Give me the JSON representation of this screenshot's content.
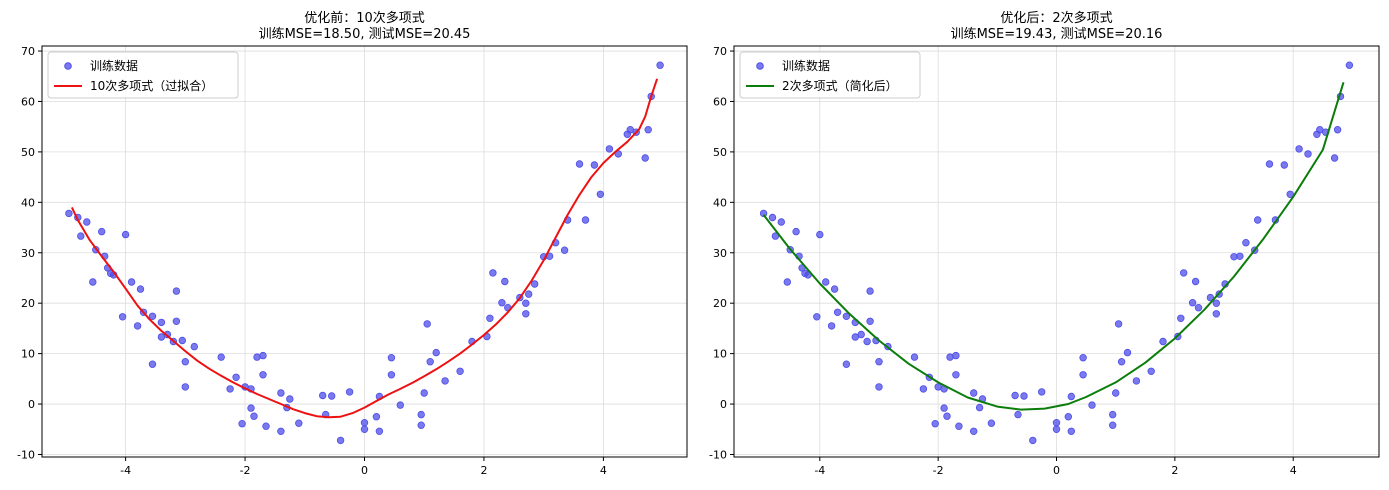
{
  "chart_data": [
    {
      "type": "scatter",
      "title": "优化前：10次多项式",
      "subtitle": "训练MSE=18.50, 测试MSE=20.45",
      "xlim": [
        -5.4,
        5.4
      ],
      "ylim": [
        -10.5,
        71
      ],
      "xticks": [
        -4,
        -2,
        0,
        2,
        4
      ],
      "yticks": [
        -10,
        0,
        10,
        20,
        30,
        40,
        50,
        60,
        70
      ],
      "grid": true,
      "legend_position": "top-left",
      "series": [
        {
          "name": "训练数据",
          "kind": "scatter",
          "color": "#4d4de8",
          "points": [
            [
              -4.95,
              37.8
            ],
            [
              -4.8,
              37.0
            ],
            [
              -4.75,
              33.3
            ],
            [
              -4.65,
              36.1
            ],
            [
              -4.55,
              24.2
            ],
            [
              -4.5,
              30.6
            ],
            [
              -4.4,
              34.2
            ],
            [
              -4.35,
              29.3
            ],
            [
              -4.3,
              27.0
            ],
            [
              -4.25,
              25.9
            ],
            [
              -4.2,
              25.6
            ],
            [
              -4.05,
              17.3
            ],
            [
              -4.0,
              33.6
            ],
            [
              -3.9,
              24.2
            ],
            [
              -3.8,
              15.5
            ],
            [
              -3.75,
              22.8
            ],
            [
              -3.7,
              18.2
            ],
            [
              -3.55,
              17.4
            ],
            [
              -3.55,
              7.9
            ],
            [
              -3.4,
              16.2
            ],
            [
              -3.4,
              13.3
            ],
            [
              -3.3,
              13.8
            ],
            [
              -3.2,
              12.4
            ],
            [
              -3.15,
              22.4
            ],
            [
              -3.15,
              16.4
            ],
            [
              -3.05,
              12.6
            ],
            [
              -3.0,
              8.4
            ],
            [
              -3.0,
              3.4
            ],
            [
              -2.85,
              11.4
            ],
            [
              -2.4,
              9.3
            ],
            [
              -2.25,
              3.0
            ],
            [
              -2.15,
              5.3
            ],
            [
              -2.05,
              -3.9
            ],
            [
              -2.0,
              3.4
            ],
            [
              -1.9,
              -0.8
            ],
            [
              -1.9,
              3.0
            ],
            [
              -1.85,
              -2.4
            ],
            [
              -1.8,
              9.3
            ],
            [
              -1.7,
              9.6
            ],
            [
              -1.7,
              5.8
            ],
            [
              -1.65,
              -4.4
            ],
            [
              -1.4,
              -5.4
            ],
            [
              -1.4,
              2.2
            ],
            [
              -1.3,
              -0.7
            ],
            [
              -1.25,
              1.0
            ],
            [
              -1.1,
              -3.8
            ],
            [
              -0.7,
              1.7
            ],
            [
              -0.65,
              -2.1
            ],
            [
              -0.55,
              1.6
            ],
            [
              -0.4,
              -7.2
            ],
            [
              -0.25,
              2.4
            ],
            [
              0.0,
              -3.7
            ],
            [
              0.0,
              -5.0
            ],
            [
              0.2,
              -2.5
            ],
            [
              0.25,
              -5.4
            ],
            [
              0.25,
              1.5
            ],
            [
              0.45,
              5.8
            ],
            [
              0.45,
              9.2
            ],
            [
              0.6,
              -0.2
            ],
            [
              0.95,
              -2.1
            ],
            [
              0.95,
              -4.2
            ],
            [
              1.0,
              2.2
            ],
            [
              1.05,
              15.9
            ],
            [
              1.1,
              8.4
            ],
            [
              1.2,
              10.2
            ],
            [
              1.35,
              4.6
            ],
            [
              1.6,
              6.5
            ],
            [
              1.8,
              12.4
            ],
            [
              2.05,
              13.4
            ],
            [
              2.1,
              17.0
            ],
            [
              2.15,
              26.0
            ],
            [
              2.3,
              20.1
            ],
            [
              2.35,
              24.3
            ],
            [
              2.4,
              19.1
            ],
            [
              2.6,
              21.1
            ],
            [
              2.7,
              20.0
            ],
            [
              2.7,
              17.9
            ],
            [
              2.75,
              21.8
            ],
            [
              2.85,
              23.8
            ],
            [
              3.0,
              29.2
            ],
            [
              3.1,
              29.3
            ],
            [
              3.2,
              32.0
            ],
            [
              3.35,
              30.5
            ],
            [
              3.4,
              36.5
            ],
            [
              3.6,
              47.6
            ],
            [
              3.7,
              36.5
            ],
            [
              3.85,
              47.4
            ],
            [
              3.95,
              41.6
            ],
            [
              4.1,
              50.6
            ],
            [
              4.25,
              49.6
            ],
            [
              4.4,
              53.5
            ],
            [
              4.45,
              54.4
            ],
            [
              4.55,
              53.9
            ],
            [
              4.7,
              48.8
            ],
            [
              4.75,
              54.4
            ],
            [
              4.8,
              61.0
            ],
            [
              4.95,
              67.2
            ]
          ]
        },
        {
          "name": "10次多项式（过拟合）",
          "kind": "line",
          "color": "#ee1111",
          "points": [
            [
              -4.9,
              39.0
            ],
            [
              -4.8,
              36.5
            ],
            [
              -4.6,
              32.5
            ],
            [
              -4.4,
              29.3
            ],
            [
              -4.2,
              26.2
            ],
            [
              -4.0,
              22.9
            ],
            [
              -3.8,
              19.5
            ],
            [
              -3.6,
              16.8
            ],
            [
              -3.4,
              14.5
            ],
            [
              -3.2,
              12.5
            ],
            [
              -3.0,
              10.5
            ],
            [
              -2.8,
              8.6
            ],
            [
              -2.6,
              7.0
            ],
            [
              -2.4,
              5.6
            ],
            [
              -2.2,
              4.3
            ],
            [
              -2.0,
              3.1
            ],
            [
              -1.8,
              2.0
            ],
            [
              -1.6,
              1.0
            ],
            [
              -1.4,
              0.0
            ],
            [
              -1.2,
              -1.0
            ],
            [
              -1.0,
              -1.8
            ],
            [
              -0.8,
              -2.4
            ],
            [
              -0.6,
              -2.6
            ],
            [
              -0.4,
              -2.5
            ],
            [
              -0.2,
              -1.8
            ],
            [
              0.0,
              -0.7
            ],
            [
              0.2,
              0.6
            ],
            [
              0.4,
              1.9
            ],
            [
              0.6,
              3.0
            ],
            [
              0.8,
              4.2
            ],
            [
              1.0,
              5.5
            ],
            [
              1.2,
              6.9
            ],
            [
              1.4,
              8.4
            ],
            [
              1.6,
              10.0
            ],
            [
              1.8,
              11.8
            ],
            [
              2.0,
              13.7
            ],
            [
              2.2,
              15.8
            ],
            [
              2.4,
              18.2
            ],
            [
              2.6,
              21.0
            ],
            [
              2.8,
              24.5
            ],
            [
              3.0,
              28.5
            ],
            [
              3.2,
              33.0
            ],
            [
              3.4,
              37.5
            ],
            [
              3.6,
              41.5
            ],
            [
              3.8,
              45.0
            ],
            [
              4.0,
              47.8
            ],
            [
              4.2,
              50.0
            ],
            [
              4.4,
              52.0
            ],
            [
              4.6,
              54.5
            ],
            [
              4.7,
              57.0
            ],
            [
              4.8,
              61.0
            ],
            [
              4.9,
              64.5
            ]
          ]
        }
      ]
    },
    {
      "type": "scatter",
      "title": "优化后：2次多项式",
      "subtitle": "训练MSE=19.43, 测试MSE=20.16",
      "xlim": [
        -5.45,
        5.45
      ],
      "ylim": [
        -10.5,
        71
      ],
      "xticks": [
        -4,
        -2,
        0,
        2,
        4
      ],
      "yticks": [
        -10,
        0,
        10,
        20,
        30,
        40,
        50,
        60,
        70
      ],
      "grid": true,
      "legend_position": "top-left",
      "series": [
        {
          "name": "训练数据",
          "kind": "scatter",
          "color": "#4d4de8",
          "points": [
            [
              -4.95,
              37.8
            ],
            [
              -4.8,
              37.0
            ],
            [
              -4.75,
              33.3
            ],
            [
              -4.65,
              36.1
            ],
            [
              -4.55,
              24.2
            ],
            [
              -4.5,
              30.6
            ],
            [
              -4.4,
              34.2
            ],
            [
              -4.35,
              29.3
            ],
            [
              -4.3,
              27.0
            ],
            [
              -4.25,
              25.9
            ],
            [
              -4.2,
              25.6
            ],
            [
              -4.05,
              17.3
            ],
            [
              -4.0,
              33.6
            ],
            [
              -3.9,
              24.2
            ],
            [
              -3.8,
              15.5
            ],
            [
              -3.75,
              22.8
            ],
            [
              -3.7,
              18.2
            ],
            [
              -3.55,
              17.4
            ],
            [
              -3.55,
              7.9
            ],
            [
              -3.4,
              16.2
            ],
            [
              -3.4,
              13.3
            ],
            [
              -3.3,
              13.8
            ],
            [
              -3.2,
              12.4
            ],
            [
              -3.15,
              22.4
            ],
            [
              -3.15,
              16.4
            ],
            [
              -3.05,
              12.6
            ],
            [
              -3.0,
              8.4
            ],
            [
              -3.0,
              3.4
            ],
            [
              -2.85,
              11.4
            ],
            [
              -2.4,
              9.3
            ],
            [
              -2.25,
              3.0
            ],
            [
              -2.15,
              5.3
            ],
            [
              -2.05,
              -3.9
            ],
            [
              -2.0,
              3.4
            ],
            [
              -1.9,
              -0.8
            ],
            [
              -1.9,
              3.0
            ],
            [
              -1.85,
              -2.4
            ],
            [
              -1.8,
              9.3
            ],
            [
              -1.7,
              9.6
            ],
            [
              -1.7,
              5.8
            ],
            [
              -1.65,
              -4.4
            ],
            [
              -1.4,
              -5.4
            ],
            [
              -1.4,
              2.2
            ],
            [
              -1.3,
              -0.7
            ],
            [
              -1.25,
              1.0
            ],
            [
              -1.1,
              -3.8
            ],
            [
              -0.7,
              1.7
            ],
            [
              -0.65,
              -2.1
            ],
            [
              -0.55,
              1.6
            ],
            [
              -0.4,
              -7.2
            ],
            [
              -0.25,
              2.4
            ],
            [
              0.0,
              -3.7
            ],
            [
              0.0,
              -5.0
            ],
            [
              0.2,
              -2.5
            ],
            [
              0.25,
              -5.4
            ],
            [
              0.25,
              1.5
            ],
            [
              0.45,
              5.8
            ],
            [
              0.45,
              9.2
            ],
            [
              0.6,
              -0.2
            ],
            [
              0.95,
              -2.1
            ],
            [
              0.95,
              -4.2
            ],
            [
              1.0,
              2.2
            ],
            [
              1.05,
              15.9
            ],
            [
              1.1,
              8.4
            ],
            [
              1.2,
              10.2
            ],
            [
              1.35,
              4.6
            ],
            [
              1.6,
              6.5
            ],
            [
              1.8,
              12.4
            ],
            [
              2.05,
              13.4
            ],
            [
              2.1,
              17.0
            ],
            [
              2.15,
              26.0
            ],
            [
              2.3,
              20.1
            ],
            [
              2.35,
              24.3
            ],
            [
              2.4,
              19.1
            ],
            [
              2.6,
              21.1
            ],
            [
              2.7,
              20.0
            ],
            [
              2.7,
              17.9
            ],
            [
              2.75,
              21.8
            ],
            [
              2.85,
              23.8
            ],
            [
              3.0,
              29.2
            ],
            [
              3.1,
              29.3
            ],
            [
              3.2,
              32.0
            ],
            [
              3.35,
              30.5
            ],
            [
              3.4,
              36.5
            ],
            [
              3.6,
              47.6
            ],
            [
              3.7,
              36.5
            ],
            [
              3.85,
              47.4
            ],
            [
              3.95,
              41.6
            ],
            [
              4.1,
              50.6
            ],
            [
              4.25,
              49.6
            ],
            [
              4.4,
              53.5
            ],
            [
              4.45,
              54.4
            ],
            [
              4.55,
              53.9
            ],
            [
              4.7,
              48.8
            ],
            [
              4.75,
              54.4
            ],
            [
              4.8,
              61.0
            ],
            [
              4.95,
              67.2
            ]
          ]
        },
        {
          "name": "2次多项式（简化后）",
          "kind": "line",
          "color": "#0a7d0a",
          "points": [
            [
              -4.95,
              37.5
            ],
            [
              -4.5,
              30.7
            ],
            [
              -4.0,
              23.9
            ],
            [
              -3.5,
              17.9
            ],
            [
              -3.0,
              12.6
            ],
            [
              -2.5,
              8.0
            ],
            [
              -2.0,
              4.3
            ],
            [
              -1.5,
              1.3
            ],
            [
              -1.0,
              -0.5
            ],
            [
              -0.6,
              -1.1
            ],
            [
              -0.2,
              -0.9
            ],
            [
              0.2,
              0.0
            ],
            [
              0.5,
              1.4
            ],
            [
              1.0,
              4.3
            ],
            [
              1.5,
              8.2
            ],
            [
              2.0,
              13.0
            ],
            [
              2.5,
              18.7
            ],
            [
              3.0,
              25.3
            ],
            [
              3.5,
              32.8
            ],
            [
              4.0,
              41.1
            ],
            [
              4.5,
              50.4
            ],
            [
              4.85,
              63.8
            ]
          ]
        }
      ]
    }
  ]
}
